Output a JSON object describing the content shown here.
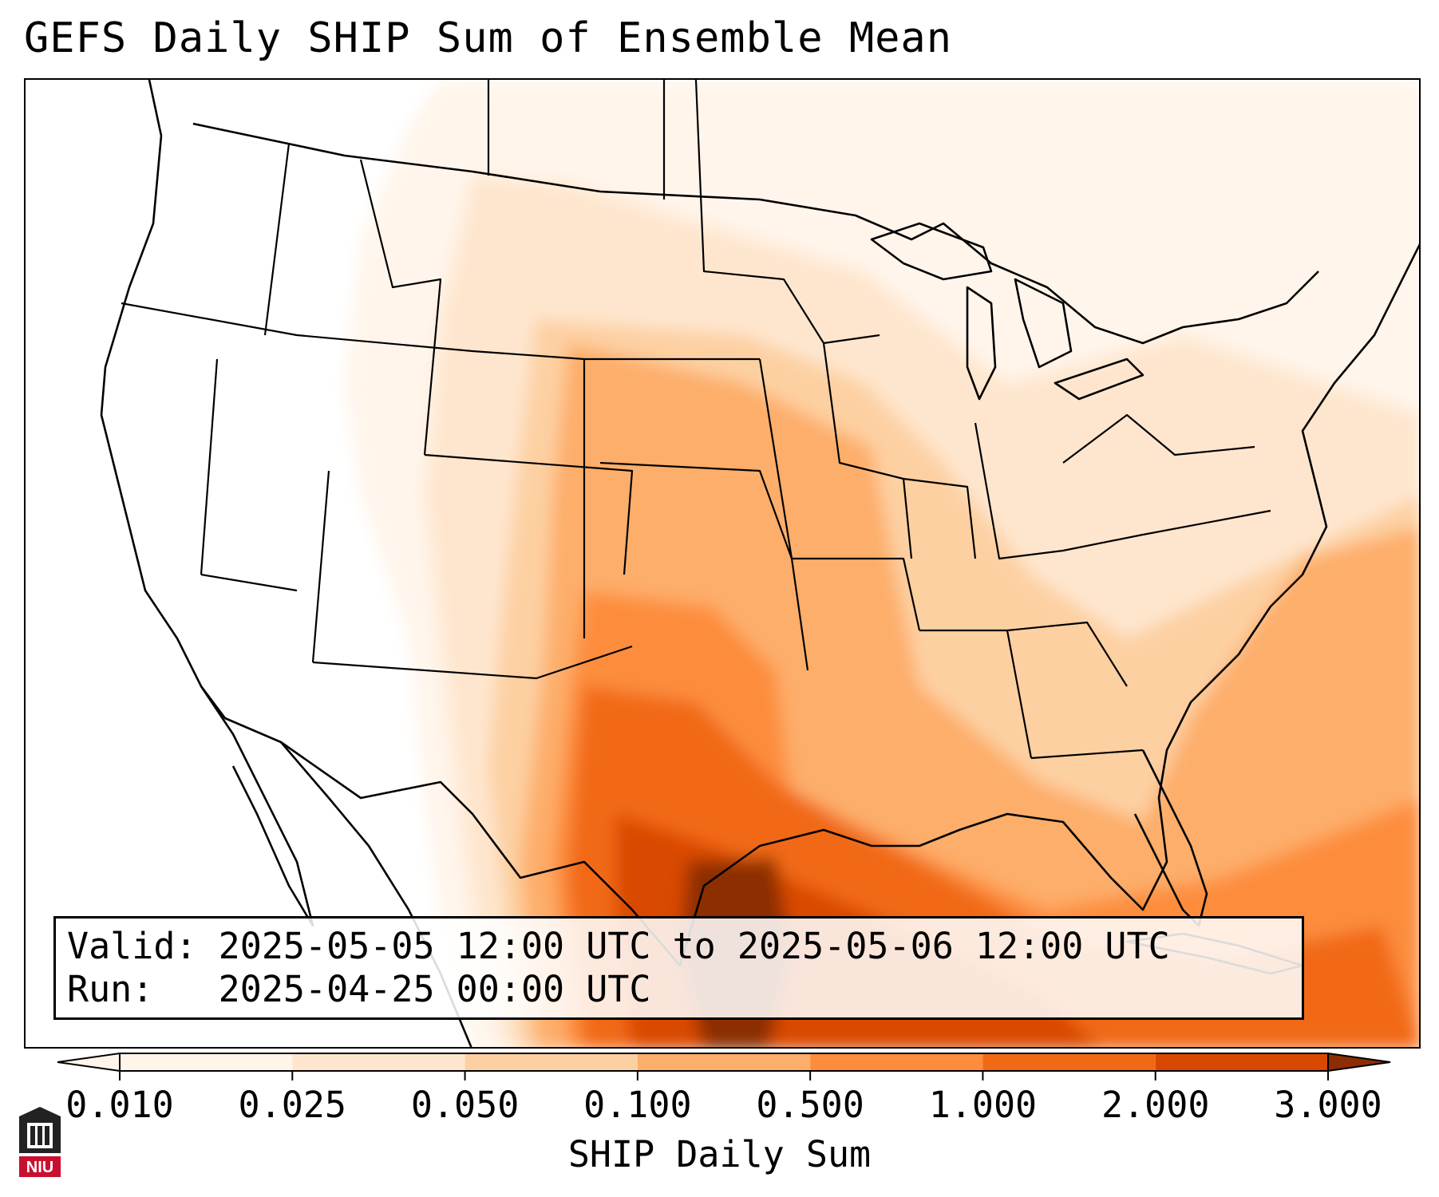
{
  "title": "GEFS Daily SHIP Sum of Ensemble Mean",
  "info": {
    "valid_line": "Valid: 2025-05-05 12:00 UTC to 2025-05-06 12:00 UTC",
    "run_line": "Run:   2025-04-25 00:00 UTC"
  },
  "colorbar": {
    "label": "SHIP Daily Sum",
    "ticks": [
      "0.010",
      "0.025",
      "0.050",
      "0.100",
      "0.500",
      "1.000",
      "2.000",
      "3.000"
    ],
    "colors": [
      "#fff5eb",
      "#fee6ce",
      "#fdd0a2",
      "#fdae6b",
      "#fd8d3c",
      "#f16913",
      "#d94801",
      "#8c2d04"
    ],
    "extend": "both"
  },
  "map": {
    "region": "Contiguous United States",
    "boundaries": "state and country borders, coastlines",
    "max_region": "Upper Texas coast",
    "max_level": "3.000"
  },
  "logo": {
    "text": "NIU"
  }
}
